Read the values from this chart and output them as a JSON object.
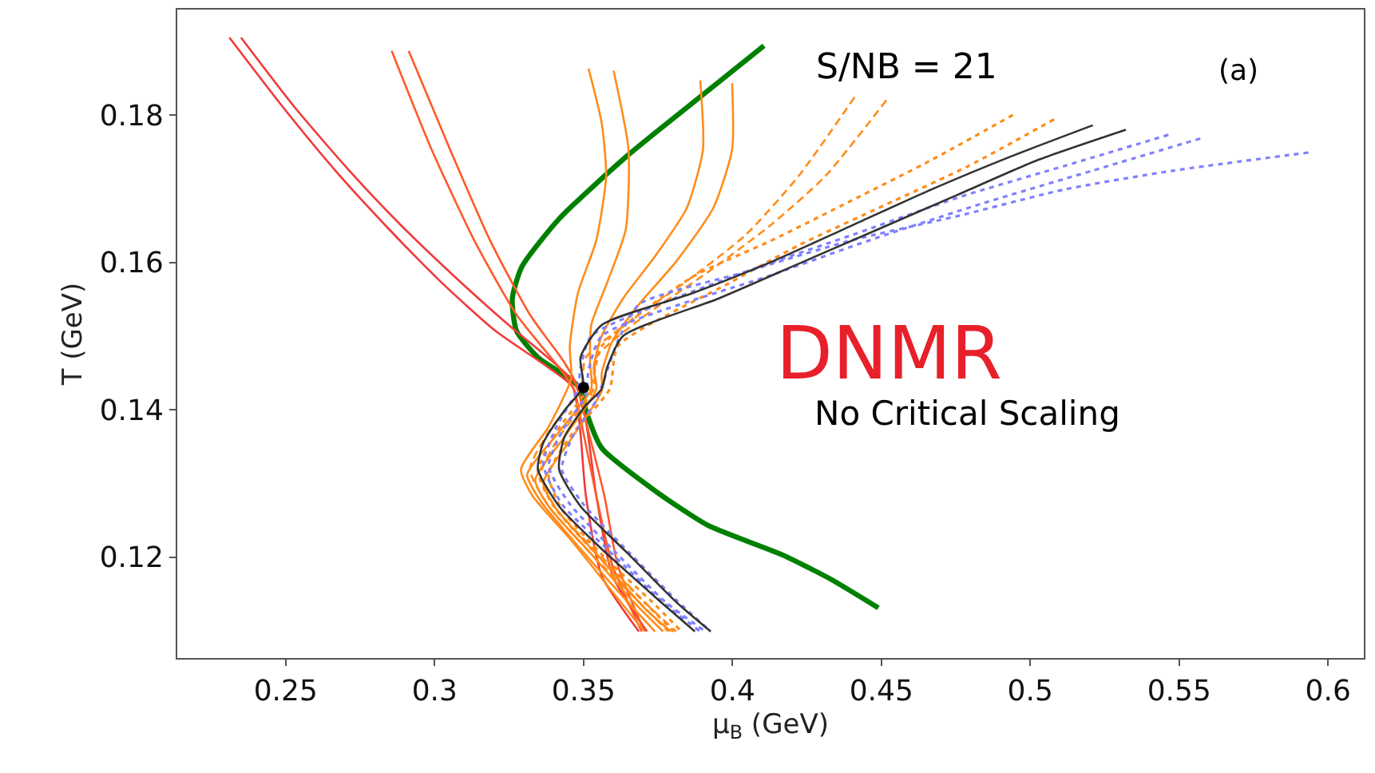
{
  "chart_data": {
    "type": "line",
    "xlabel": "μ$_{B}$ (GeV)",
    "ylabel": "T (GeV)",
    "xlim": [
      0.2136,
      0.612
    ],
    "xticks": [
      0.25,
      0.3,
      0.35,
      0.4,
      0.45,
      0.5,
      0.55,
      0.6
    ],
    "ylim": [
      0.1063,
      0.1943
    ],
    "yticks": [
      0.12,
      0.14,
      0.16,
      0.18
    ],
    "grid": false,
    "marker": "none",
    "annotations": [
      "S/NB = 21",
      "(a)",
      "DNMR",
      "No Critical Scaling"
    ],
    "series": [
      {
        "color": "#008000",
        "line_style": "solid",
        "x": [
          0.4106,
          0.3918,
          0.3651,
          0.3418,
          0.3293,
          0.3261,
          0.3275,
          0.3347,
          0.3454,
          0.349,
          0.3508,
          0.3561,
          0.374,
          0.3918,
          0.4168,
          0.433,
          0.449
        ],
        "values": [
          0.1894,
          0.1833,
          0.1746,
          0.1659,
          0.1594,
          0.1551,
          0.1507,
          0.1471,
          0.1442,
          0.1428,
          0.1399,
          0.1348,
          0.129,
          0.1243,
          0.1203,
          0.117,
          0.1131
        ]
      },
      {
        "color": "#f03a3a",
        "line_style": "solid",
        "x": [
          0.2311,
          0.249,
          0.2668,
          0.2847,
          0.3025,
          0.3204,
          0.3383,
          0.3463,
          0.3486,
          0.3508,
          0.3561,
          0.3686
        ],
        "values": [
          0.1905,
          0.1811,
          0.1724,
          0.1645,
          0.1572,
          0.1507,
          0.1457,
          0.1431,
          0.1384,
          0.1283,
          0.1175,
          0.1099
        ]
      },
      {
        "color": "#f03a3a",
        "line_style": "solid",
        "x": [
          0.235,
          0.2529,
          0.2708,
          0.2883,
          0.3061,
          0.324,
          0.34,
          0.3472,
          0.3508,
          0.3543,
          0.3597,
          0.3713
        ],
        "values": [
          0.1905,
          0.1811,
          0.1727,
          0.1652,
          0.1583,
          0.1518,
          0.1464,
          0.1435,
          0.1384,
          0.1283,
          0.1175,
          0.1099
        ]
      },
      {
        "color": "#ff5a28",
        "line_style": "solid",
        "x": [
          0.2856,
          0.299,
          0.3133,
          0.3275,
          0.3418,
          0.3468,
          0.3499,
          0.3543,
          0.3597,
          0.3695
        ],
        "values": [
          0.1887,
          0.1753,
          0.163,
          0.1529,
          0.1457,
          0.1428,
          0.137,
          0.1283,
          0.1189,
          0.1099
        ]
      },
      {
        "color": "#ff5a28",
        "line_style": "solid",
        "x": [
          0.2913,
          0.3052,
          0.3186,
          0.332,
          0.3436,
          0.3475,
          0.3517,
          0.357,
          0.3615,
          0.3704
        ],
        "values": [
          0.1887,
          0.1753,
          0.163,
          0.1529,
          0.1464,
          0.1435,
          0.137,
          0.1283,
          0.1189,
          0.1099
        ]
      },
      {
        "color": "#ff8c1a",
        "line_style": "solid",
        "x": [
          0.3517,
          0.3561,
          0.3576,
          0.3543,
          0.3481,
          0.3454,
          0.3458,
          0.3383,
          0.329,
          0.3329,
          0.3454,
          0.3597,
          0.3704
        ],
        "values": [
          0.1863,
          0.1789,
          0.1717,
          0.163,
          0.1558,
          0.1486,
          0.1442,
          0.1377,
          0.1319,
          0.1283,
          0.1225,
          0.1153,
          0.1099
        ]
      },
      {
        "color": "#ff8c1a",
        "line_style": "solid",
        "x": [
          0.3601,
          0.3651,
          0.3642,
          0.3579,
          0.3526,
          0.3522,
          0.3526,
          0.3418,
          0.3311,
          0.3356,
          0.349,
          0.3633,
          0.374
        ],
        "values": [
          0.186,
          0.1753,
          0.1645,
          0.1572,
          0.1515,
          0.1464,
          0.1428,
          0.137,
          0.1312,
          0.1276,
          0.1211,
          0.1146,
          0.1099
        ]
      },
      {
        "color": "#ff8c1a",
        "line_style": "solid",
        "x": [
          0.3892,
          0.3901,
          0.3847,
          0.374,
          0.3633,
          0.3561,
          0.3534,
          0.3543,
          0.3436,
          0.3338,
          0.3383,
          0.3526,
          0.3668,
          0.3767
        ],
        "values": [
          0.1847,
          0.1753,
          0.1674,
          0.1608,
          0.1551,
          0.15,
          0.1457,
          0.1428,
          0.1363,
          0.1305,
          0.1269,
          0.1204,
          0.1139,
          0.1099
        ]
      },
      {
        "color": "#ff8c1a",
        "line_style": "solid",
        "x": [
          0.3999,
          0.3999,
          0.3936,
          0.3811,
          0.3686,
          0.3597,
          0.3561,
          0.3561,
          0.3463,
          0.3365,
          0.3409,
          0.3561,
          0.3704,
          0.3793
        ],
        "values": [
          0.1843,
          0.1753,
          0.1674,
          0.1601,
          0.1543,
          0.1493,
          0.1449,
          0.1425,
          0.1363,
          0.1301,
          0.1265,
          0.1196,
          0.1131,
          0.1099
        ]
      },
      {
        "color": "#ff8c1a",
        "line_style": "dashed",
        "x": [
          0.441,
          0.4222,
          0.4044,
          0.3865,
          0.3687,
          0.3508,
          0.349,
          0.3383,
          0.332,
          0.3383,
          0.3526,
          0.3686,
          0.3784
        ],
        "values": [
          0.1824,
          0.1717,
          0.1637,
          0.158,
          0.1529,
          0.1471,
          0.1428,
          0.137,
          0.1319,
          0.1269,
          0.1204,
          0.1139,
          0.1099
        ]
      },
      {
        "color": "#ff8c1a",
        "line_style": "dashed",
        "x": [
          0.4517,
          0.4312,
          0.4133,
          0.3919,
          0.3687,
          0.3543,
          0.3534,
          0.3418,
          0.3356,
          0.3409,
          0.3561,
          0.3704,
          0.3811
        ],
        "values": [
          0.182,
          0.1717,
          0.1652,
          0.1587,
          0.1522,
          0.1471,
          0.1428,
          0.1363,
          0.1312,
          0.1265,
          0.12,
          0.1139,
          0.1099
        ]
      },
      {
        "color": "#ff8c1a",
        "line_style": "dotted",
        "x": [
          0.4942,
          0.4669,
          0.4401,
          0.4133,
          0.3865,
          0.3561,
          0.3526,
          0.3409,
          0.3347,
          0.34,
          0.3543,
          0.3704,
          0.3802
        ],
        "values": [
          0.18,
          0.1739,
          0.1684,
          0.163,
          0.158,
          0.1486,
          0.1435,
          0.137,
          0.1316,
          0.1269,
          0.1204,
          0.1139,
          0.1099
        ]
      },
      {
        "color": "#ff8c1a",
        "line_style": "dotted",
        "x": [
          0.508,
          0.4794,
          0.4508,
          0.4222,
          0.399,
          0.3615,
          0.3588,
          0.3454,
          0.3383,
          0.3427,
          0.357,
          0.3731,
          0.3829
        ],
        "values": [
          0.1794,
          0.1731,
          0.1677,
          0.1623,
          0.1572,
          0.1486,
          0.1428,
          0.1363,
          0.1312,
          0.1265,
          0.12,
          0.1139,
          0.1099
        ]
      },
      {
        "color": "#8080ff",
        "line_style": "dotted",
        "x": [
          0.5464,
          0.5116,
          0.4758,
          0.4401,
          0.4044,
          0.3526,
          0.349,
          0.3481,
          0.3409,
          0.3365,
          0.3427,
          0.3579,
          0.3757,
          0.3892
        ],
        "values": [
          0.1773,
          0.1731,
          0.1688,
          0.1637,
          0.1587,
          0.15,
          0.1457,
          0.1428,
          0.1377,
          0.1326,
          0.1272,
          0.1211,
          0.1142,
          0.1099
        ]
      },
      {
        "color": "#8080ff",
        "line_style": "dotted",
        "x": [
          0.5571,
          0.5205,
          0.4848,
          0.449,
          0.4133,
          0.3561,
          0.3517,
          0.3508,
          0.3427,
          0.3383,
          0.3454,
          0.3606,
          0.3775,
          0.3909
        ],
        "values": [
          0.1768,
          0.1724,
          0.1681,
          0.1634,
          0.1583,
          0.15,
          0.1453,
          0.142,
          0.137,
          0.1323,
          0.1272,
          0.1207,
          0.1139,
          0.1099
        ]
      },
      {
        "color": "#8080ff",
        "line_style": "dotted",
        "x": [
          0.5934,
          0.5473,
          0.5116,
          0.4758,
          0.4401,
          0.4044,
          0.3687,
          0.3615,
          0.357,
          0.3543,
          0.3463,
          0.3427,
          0.3499,
          0.3651,
          0.3811,
          0.3927
        ],
        "values": [
          0.1749,
          0.1724,
          0.1699,
          0.1663,
          0.163,
          0.1587,
          0.1543,
          0.1493,
          0.1442,
          0.1413,
          0.1363,
          0.1319,
          0.1272,
          0.1207,
          0.1142,
          0.1099
        ]
      },
      {
        "color": "#333333",
        "line_style": "solid",
        "x": [
          0.521,
          0.4937,
          0.4669,
          0.4401,
          0.4133,
          0.3865,
          0.3561,
          0.349,
          0.3499,
          0.3436,
          0.3365,
          0.3347,
          0.3418,
          0.3561,
          0.374,
          0.3874
        ],
        "values": [
          0.1786,
          0.1744,
          0.1699,
          0.165,
          0.1601,
          0.1558,
          0.1515,
          0.1471,
          0.1431,
          0.1399,
          0.1355,
          0.1319,
          0.1269,
          0.1211,
          0.1146,
          0.1099
        ]
      },
      {
        "color": "#333333",
        "line_style": "solid",
        "x": [
          0.5321,
          0.5026,
          0.4758,
          0.449,
          0.4222,
          0.3954,
          0.3633,
          0.3579,
          0.3561,
          0.3508,
          0.3436,
          0.3418,
          0.349,
          0.3651,
          0.3811,
          0.3927
        ],
        "values": [
          0.178,
          0.1739,
          0.1692,
          0.1645,
          0.1598,
          0.1551,
          0.15,
          0.1457,
          0.1428,
          0.1406,
          0.1363,
          0.1319,
          0.1269,
          0.1204,
          0.1139,
          0.1099
        ]
      },
      {
        "type": "scatter",
        "marker": "circle",
        "color": "#000000",
        "x": [
          0.35
        ],
        "values": [
          0.143
        ]
      }
    ]
  }
}
